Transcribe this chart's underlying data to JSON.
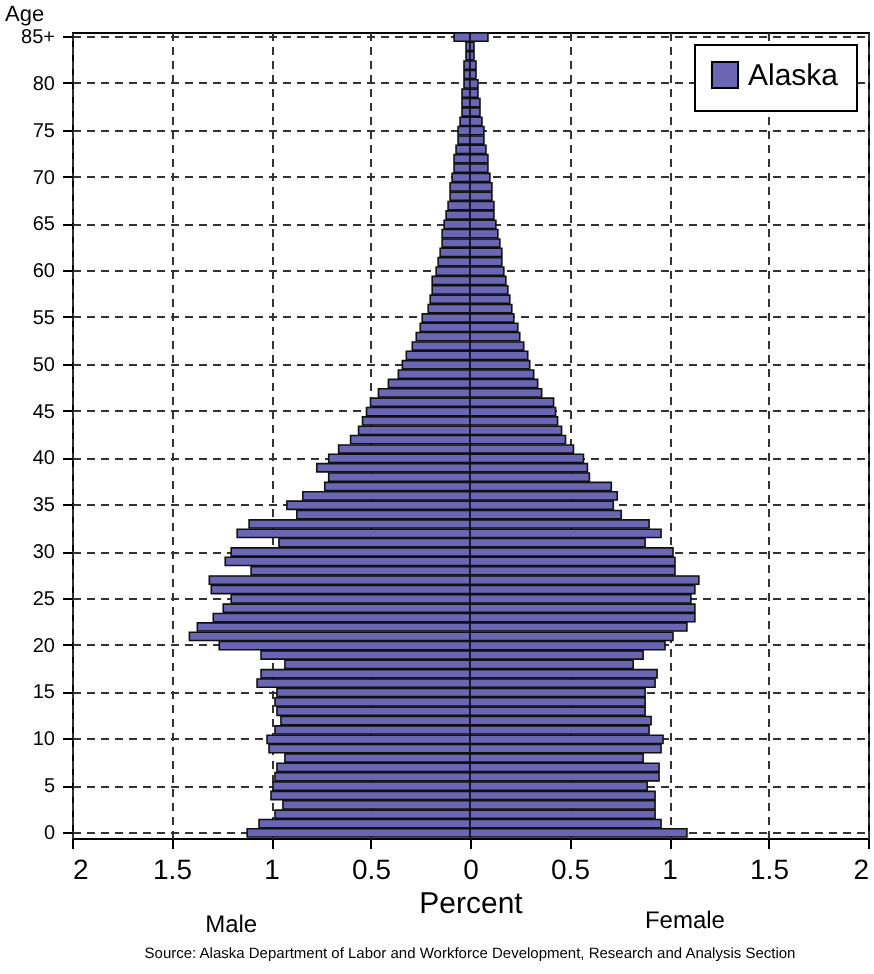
{
  "chart_data": {
    "type": "bar",
    "orientation": "horizontal",
    "xlabel": "Percent",
    "ylabel": "Age",
    "categories": [
      "85+",
      null,
      null,
      null,
      null,
      "80",
      null,
      null,
      null,
      null,
      "75",
      null,
      null,
      null,
      null,
      "70",
      null,
      null,
      null,
      null,
      "65",
      null,
      null,
      null,
      null,
      "60",
      null,
      null,
      null,
      null,
      "55",
      null,
      null,
      null,
      null,
      "50",
      null,
      null,
      null,
      null,
      "45",
      null,
      null,
      null,
      null,
      "40",
      null,
      null,
      null,
      null,
      "35",
      null,
      null,
      null,
      null,
      "30",
      null,
      null,
      null,
      null,
      "25",
      null,
      null,
      null,
      null,
      "20",
      null,
      null,
      null,
      null,
      "15",
      null,
      null,
      null,
      null,
      "10",
      null,
      null,
      null,
      null,
      "5",
      null,
      null,
      null,
      null,
      "0"
    ],
    "series": [
      {
        "name": "Alaska",
        "color": "#6a66b4",
        "values": [
          -0.08,
          -0.02,
          -0.02,
          -0.03,
          -0.03,
          -0.03,
          -0.04,
          -0.04,
          -0.04,
          -0.05,
          -0.06,
          -0.06,
          -0.07,
          -0.08,
          -0.08,
          -0.09,
          -0.1,
          -0.1,
          -0.11,
          -0.12,
          -0.13,
          -0.14,
          -0.14,
          -0.15,
          -0.16,
          -0.17,
          -0.19,
          -0.19,
          -0.2,
          -0.21,
          -0.24,
          -0.25,
          -0.27,
          -0.29,
          -0.32,
          -0.34,
          -0.36,
          -0.41,
          -0.46,
          -0.5,
          -0.52,
          -0.54,
          -0.56,
          -0.6,
          -0.66,
          -0.71,
          -0.77,
          -0.71,
          -0.73,
          -0.84,
          -0.92,
          -0.87,
          -1.11,
          -1.17,
          -0.96,
          -1.2,
          -1.23,
          -1.1,
          -1.31,
          -1.3,
          -1.2,
          -1.24,
          -1.29,
          -1.37,
          -1.41,
          -1.26,
          -1.05,
          -0.93,
          -1.05,
          -1.07,
          -0.97,
          -0.98,
          -0.97,
          -0.95,
          -0.98,
          -1.02,
          -1.01,
          -0.93,
          -0.97,
          -0.98,
          -0.99,
          -1.0,
          -0.94,
          -0.98,
          -1.06,
          -1.12
        ]
      },
      {
        "color": "#6a66b4",
        "values": [
          0.09,
          0.02,
          0.02,
          0.03,
          0.03,
          0.04,
          0.04,
          0.05,
          0.05,
          0.06,
          0.07,
          0.07,
          0.08,
          0.09,
          0.09,
          0.1,
          0.11,
          0.11,
          0.12,
          0.12,
          0.13,
          0.14,
          0.15,
          0.16,
          0.16,
          0.17,
          0.18,
          0.19,
          0.2,
          0.21,
          0.22,
          0.24,
          0.25,
          0.27,
          0.29,
          0.3,
          0.32,
          0.34,
          0.36,
          0.42,
          0.43,
          0.44,
          0.46,
          0.48,
          0.52,
          0.57,
          0.59,
          0.6,
          0.71,
          0.74,
          0.72,
          0.76,
          0.9,
          0.96,
          0.88,
          1.02,
          1.03,
          1.03,
          1.15,
          1.13,
          1.11,
          1.13,
          1.13,
          1.09,
          1.02,
          0.98,
          0.87,
          0.82,
          0.94,
          0.93,
          0.88,
          0.88,
          0.88,
          0.91,
          0.9,
          0.97,
          0.96,
          0.87,
          0.95,
          0.95,
          0.89,
          0.93,
          0.93,
          0.93,
          0.96,
          1.09
        ]
      }
    ],
    "xlim": [
      -2,
      2
    ],
    "xticks": [
      {
        "value": -2,
        "label": "2"
      },
      {
        "value": -1.5,
        "label": "1.5"
      },
      {
        "value": -1,
        "label": "1"
      },
      {
        "value": -0.5,
        "label": "0.5"
      },
      0,
      0.5,
      1,
      1.5,
      2
    ],
    "grid": true,
    "legend": "top right",
    "stacked": true,
    "annotations": [
      "Male",
      "Female",
      "Source: Alaska Department of Labor and Workforce Development, Research and Analysis Section"
    ]
  }
}
